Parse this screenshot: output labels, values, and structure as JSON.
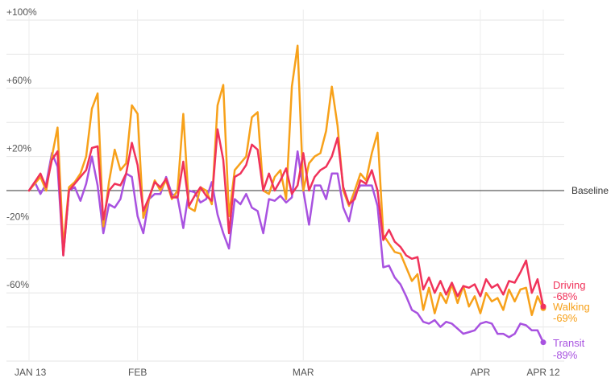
{
  "chart_data": {
    "type": "line",
    "ylim": [
      -100,
      100
    ],
    "grid": true,
    "y_ticks": [
      {
        "value": 100,
        "label": "+100%"
      },
      {
        "value": 60,
        "label": "+60%"
      },
      {
        "value": 20,
        "label": "+20%"
      },
      {
        "value": -20,
        "label": "-20%"
      },
      {
        "value": -60,
        "label": "-60%"
      }
    ],
    "x_ticks": [
      {
        "day": 0,
        "label": "JAN 13"
      },
      {
        "day": 19,
        "label": "FEB"
      },
      {
        "day": 48,
        "label": "MAR"
      },
      {
        "day": 79,
        "label": "APR"
      },
      {
        "day": 90,
        "label": "APR 12"
      }
    ],
    "baseline_label": "Baseline",
    "series": [
      {
        "name": "Driving",
        "end_value_label": "-68%",
        "color": "#f0325a",
        "values": [
          0,
          5,
          10,
          2,
          18,
          23,
          -38,
          0,
          4,
          8,
          12,
          25,
          26,
          -17,
          0,
          4,
          3,
          10,
          28,
          15,
          -12,
          -4,
          5,
          2,
          7,
          -4,
          -4,
          17,
          -9,
          -3,
          2,
          -3,
          -6,
          36,
          18,
          -25,
          8,
          10,
          15,
          27,
          24,
          0,
          10,
          0,
          6,
          13,
          -2,
          3,
          22,
          0,
          8,
          12,
          14,
          20,
          31,
          2,
          -8,
          -5,
          6,
          4,
          12,
          0,
          -29,
          -23,
          -30,
          -33,
          -38,
          -40,
          -39,
          -58,
          -51,
          -60,
          -53,
          -61,
          -54,
          -62,
          -56,
          -57,
          -55,
          -62,
          -52,
          -57,
          -55,
          -61,
          -53,
          -54,
          -48,
          -41,
          -60,
          -52,
          -68
        ]
      },
      {
        "name": "Walking",
        "end_value_label": "-69%",
        "color": "#f7a11a",
        "values": [
          0,
          4,
          8,
          0,
          20,
          37,
          -33,
          2,
          5,
          10,
          20,
          48,
          57,
          -21,
          5,
          24,
          12,
          16,
          50,
          45,
          -16,
          -5,
          6,
          0,
          6,
          -5,
          0,
          45,
          -10,
          -12,
          2,
          0,
          -8,
          50,
          62,
          -15,
          12,
          16,
          20,
          43,
          46,
          0,
          -2,
          8,
          12,
          -5,
          61,
          85,
          0,
          16,
          20,
          22,
          35,
          61,
          38,
          0,
          -9,
          0,
          10,
          6,
          22,
          34,
          -26,
          -31,
          -36,
          -37,
          -45,
          -53,
          -49,
          -70,
          -57,
          -72,
          -60,
          -66,
          -55,
          -66,
          -56,
          -68,
          -62,
          -72,
          -60,
          -65,
          -63,
          -70,
          -58,
          -65,
          -58,
          -57,
          -73,
          -62,
          -69
        ]
      },
      {
        "name": "Transit",
        "end_value_label": "-89%",
        "color": "#a852e0",
        "values": [
          0,
          5,
          -2,
          4,
          22,
          14,
          -38,
          0,
          2,
          -6,
          4,
          20,
          3,
          -25,
          -8,
          -10,
          -5,
          10,
          8,
          -15,
          -25,
          -5,
          -2,
          -2,
          8,
          -2,
          -4,
          -22,
          0,
          -1,
          -7,
          -5,
          5,
          -14,
          -25,
          -34,
          -5,
          -8,
          -2,
          -10,
          -12,
          -25,
          -5,
          -6,
          -3,
          -7,
          -4,
          23,
          0,
          -20,
          3,
          3,
          -5,
          10,
          10,
          -10,
          -18,
          -2,
          3,
          3,
          3,
          -9,
          -45,
          -44,
          -51,
          -55,
          -62,
          -70,
          -72,
          -77,
          -78,
          -76,
          -80,
          -77,
          -78,
          -81,
          -84,
          -83,
          -82,
          -78,
          -77,
          -78,
          -84,
          -84,
          -86,
          -84,
          -78,
          -79,
          -82,
          -82,
          -89
        ]
      }
    ]
  }
}
